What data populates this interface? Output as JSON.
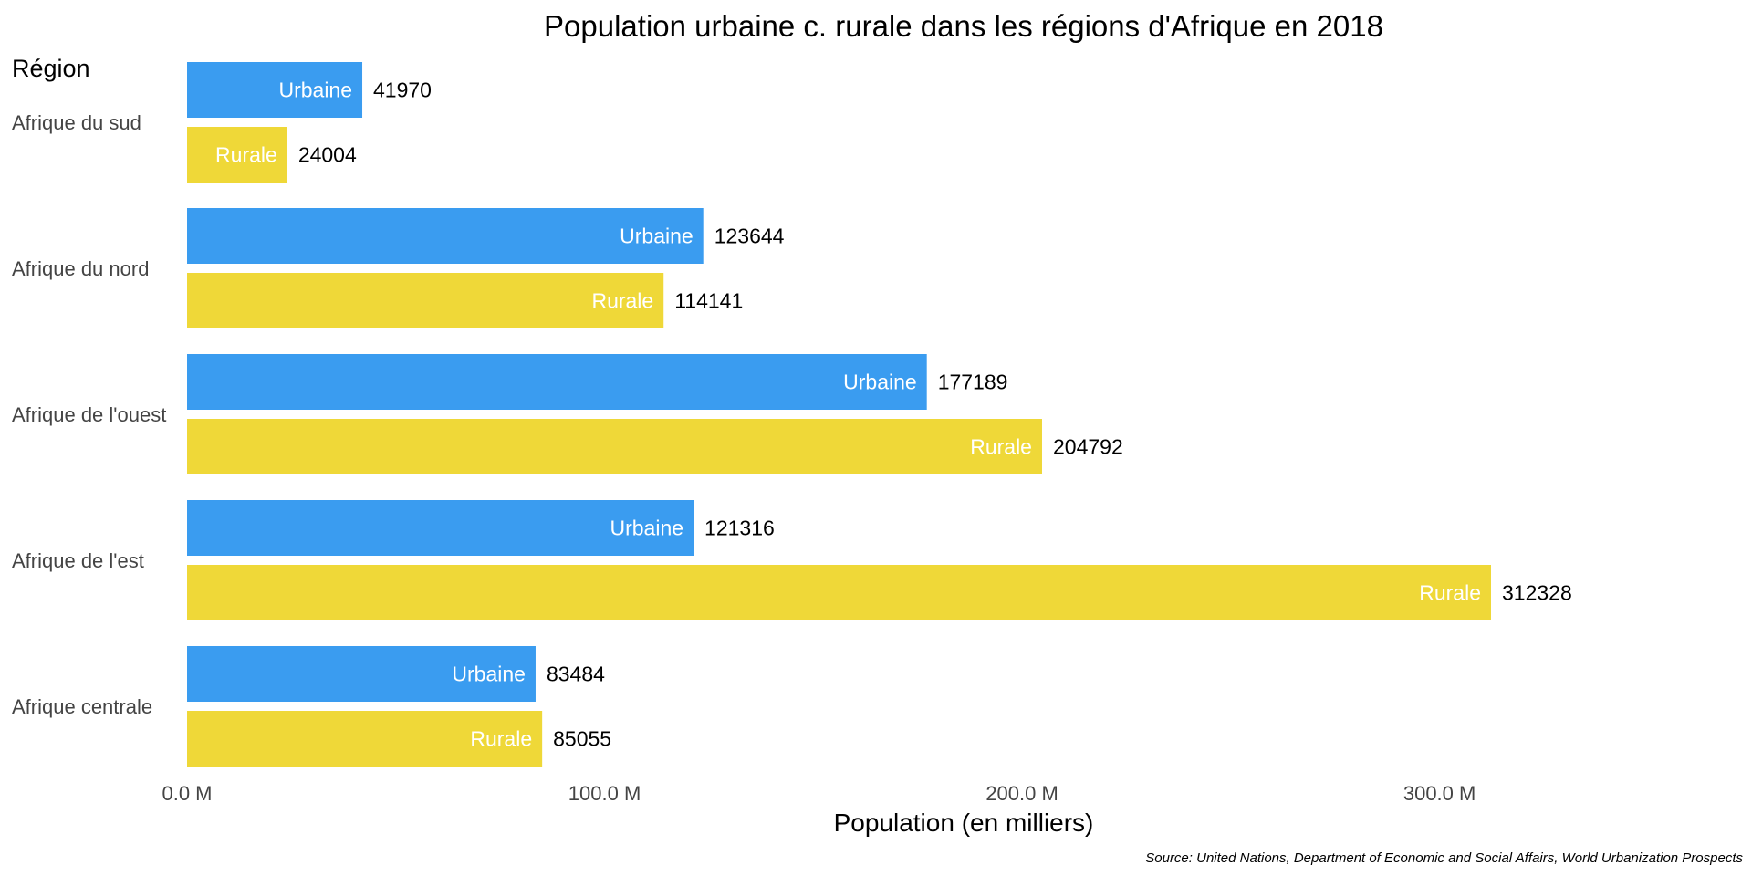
{
  "chart_data": {
    "type": "bar",
    "orientation": "horizontal",
    "title": "Population urbaine c. rurale dans les régions d'Afrique en 2018",
    "region_header": "Région",
    "xlabel": "Population (en milliers)",
    "source": "Source: United Nations, Department of Economic and Social Affairs, World Urbanization Prospects",
    "categories": [
      "Afrique du sud",
      "Afrique du nord",
      "Afrique de l'ouest",
      "Afrique de l'est",
      "Afrique centrale"
    ],
    "series": [
      {
        "name": "Urbaine",
        "color": "#3a9cf0",
        "values": [
          41970,
          123644,
          177189,
          121316,
          83484
        ]
      },
      {
        "name": "Rurale",
        "color": "#efd838",
        "values": [
          24004,
          114141,
          204792,
          312328,
          85055
        ]
      }
    ],
    "xticks": [
      {
        "value": 0,
        "label": "0.0 M"
      },
      {
        "value": 100000,
        "label": "100.0 M"
      },
      {
        "value": 200000,
        "label": "200.0 M"
      },
      {
        "value": 300000,
        "label": "300.0 M"
      }
    ],
    "xlim": [
      0,
      312328
    ],
    "grid": false,
    "legend": "none"
  }
}
